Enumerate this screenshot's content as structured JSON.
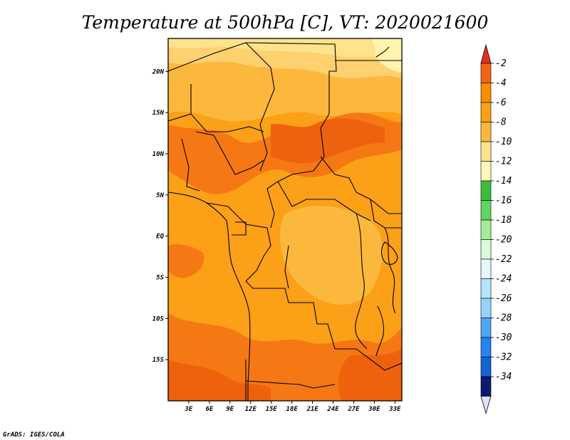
{
  "title": "Temperature at 500hPa [C], VT: 2020021600",
  "credit": "GrADS: IGES/COLA",
  "map": {
    "lon_range": [
      0,
      34
    ],
    "lat_range": [
      -20,
      24
    ],
    "lat_ticks": [
      {
        "value": 20,
        "label": "20N"
      },
      {
        "value": 15,
        "label": "15N"
      },
      {
        "value": 10,
        "label": "10N"
      },
      {
        "value": 5,
        "label": "5N"
      },
      {
        "value": 0,
        "label": "EQ"
      },
      {
        "value": -5,
        "label": "5S"
      },
      {
        "value": -10,
        "label": "10S"
      },
      {
        "value": -15,
        "label": "15S"
      }
    ],
    "lon_ticks": [
      {
        "value": 3,
        "label": "3E"
      },
      {
        "value": 6,
        "label": "6E"
      },
      {
        "value": 9,
        "label": "9E"
      },
      {
        "value": 12,
        "label": "12E"
      },
      {
        "value": 15,
        "label": "15E"
      },
      {
        "value": 18,
        "label": "18E"
      },
      {
        "value": 21,
        "label": "21E"
      },
      {
        "value": 24,
        "label": "24E"
      },
      {
        "value": 27,
        "label": "27E"
      },
      {
        "value": 30,
        "label": "30E"
      },
      {
        "value": 33,
        "label": "33E"
      }
    ]
  },
  "colorbar": {
    "levels": [
      {
        "label": "-2",
        "color": "#f06414"
      },
      {
        "label": "-4",
        "color": "#fa8c00"
      },
      {
        "label": "-6",
        "color": "#fca018"
      },
      {
        "label": "-8",
        "color": "#fbb83c"
      },
      {
        "label": "-10",
        "color": "#fde38c"
      },
      {
        "label": "-12",
        "color": "#fff8bc"
      },
      {
        "label": "-14",
        "color": "#3cbe3c"
      },
      {
        "label": "-16",
        "color": "#60d660"
      },
      {
        "label": "-18",
        "color": "#a0ec9a"
      },
      {
        "label": "-20",
        "color": "#dcfadc"
      },
      {
        "label": "-22",
        "color": "#e6f8ff"
      },
      {
        "label": "-24",
        "color": "#b4e6fa"
      },
      {
        "label": "-26",
        "color": "#96d2fa"
      },
      {
        "label": "-28",
        "color": "#50a5f5"
      },
      {
        "label": "-30",
        "color": "#2882f0"
      },
      {
        "label": "-32",
        "color": "#1464d2"
      },
      {
        "label": "-34",
        "color": "#1e3cb4"
      }
    ],
    "top_arrow_color": "#e62f1e",
    "bottom_arrow_color": "#e1e1ff",
    "bottom_band_color": "#0a1a6e"
  },
  "chart_data": {
    "type": "heatmap",
    "title": "Temperature at 500hPa [C], VT: 2020021600",
    "variable": "Temperature at 500hPa",
    "units": "C",
    "valid_time": "2020021600",
    "xlabel": "",
    "ylabel": "",
    "xlim": [
      0,
      34
    ],
    "ylim": [
      -20,
      24
    ],
    "x_tick_labels": [
      "3E",
      "6E",
      "9E",
      "12E",
      "15E",
      "18E",
      "21E",
      "24E",
      "27E",
      "30E",
      "33E"
    ],
    "y_tick_labels": [
      "20N",
      "15N",
      "10N",
      "5N",
      "EQ",
      "5S",
      "10S",
      "15S"
    ],
    "color_levels": [
      -2,
      -4,
      -6,
      -8,
      -10,
      -12,
      -14,
      -16,
      -18,
      -20,
      -22,
      -24,
      -26,
      -28,
      -30,
      -32,
      -34
    ],
    "field_range_c": [
      -10,
      -2
    ]
  }
}
